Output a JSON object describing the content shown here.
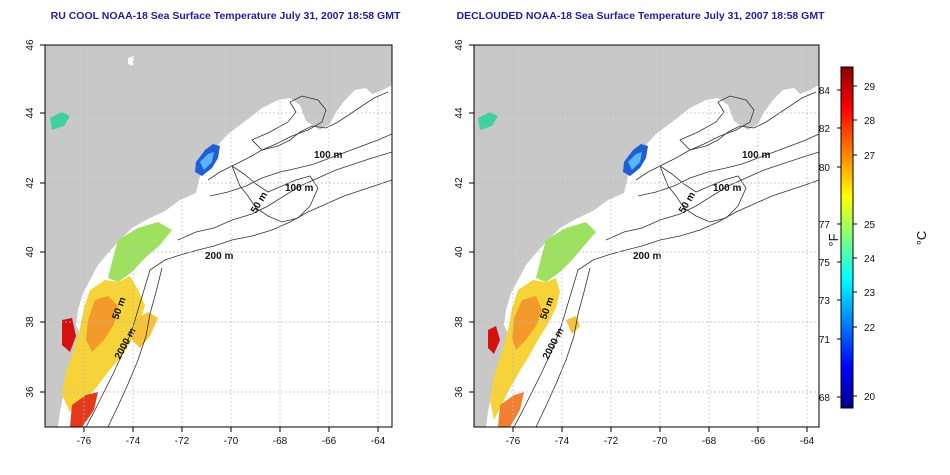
{
  "panels": [
    {
      "title": "RU COOL NOAA-18 Sea Surface Temperature July 31, 2007 18:58 GMT",
      "type": "cloud-masked",
      "x_ticks": [
        "-76",
        "-74",
        "-72",
        "-70",
        "-68",
        "-66",
        "-64"
      ],
      "y_ticks": [
        "36",
        "38",
        "40",
        "42",
        "44",
        "46"
      ],
      "contour_labels": [
        "100 m",
        "100 m",
        "50 m",
        "200 m",
        "50 m",
        "2000 m"
      ]
    },
    {
      "title": "DECLOUDED NOAA-18 Sea Surface Temperature July 31, 2007 18:58 GMT",
      "type": "declouded",
      "x_ticks": [
        "-76",
        "-74",
        "-72",
        "-70",
        "-68",
        "-66",
        "-64"
      ],
      "y_ticks": [
        "36",
        "38",
        "40",
        "42",
        "44",
        "46"
      ],
      "contour_labels": [
        "100 m",
        "100 m",
        "50 m",
        "200 m",
        "50 m",
        "2000 m"
      ]
    }
  ],
  "colorbar": {
    "f_label": "°F",
    "c_label": "°C",
    "f_ticks": [
      "84",
      "82",
      "80",
      "77",
      "75",
      "73",
      "71",
      "68"
    ],
    "c_ticks": [
      "29",
      "28",
      "27",
      "25",
      "24",
      "23",
      "22",
      "20"
    ],
    "colors": [
      "#00008b",
      "#0000ff",
      "#0080ff",
      "#00ffff",
      "#80ff80",
      "#ffff00",
      "#ff8000",
      "#ff0000",
      "#8b0000"
    ]
  },
  "colors": {
    "land": "#c8c8c8",
    "ocean": "#ffffff",
    "title": "#1f1f99"
  }
}
